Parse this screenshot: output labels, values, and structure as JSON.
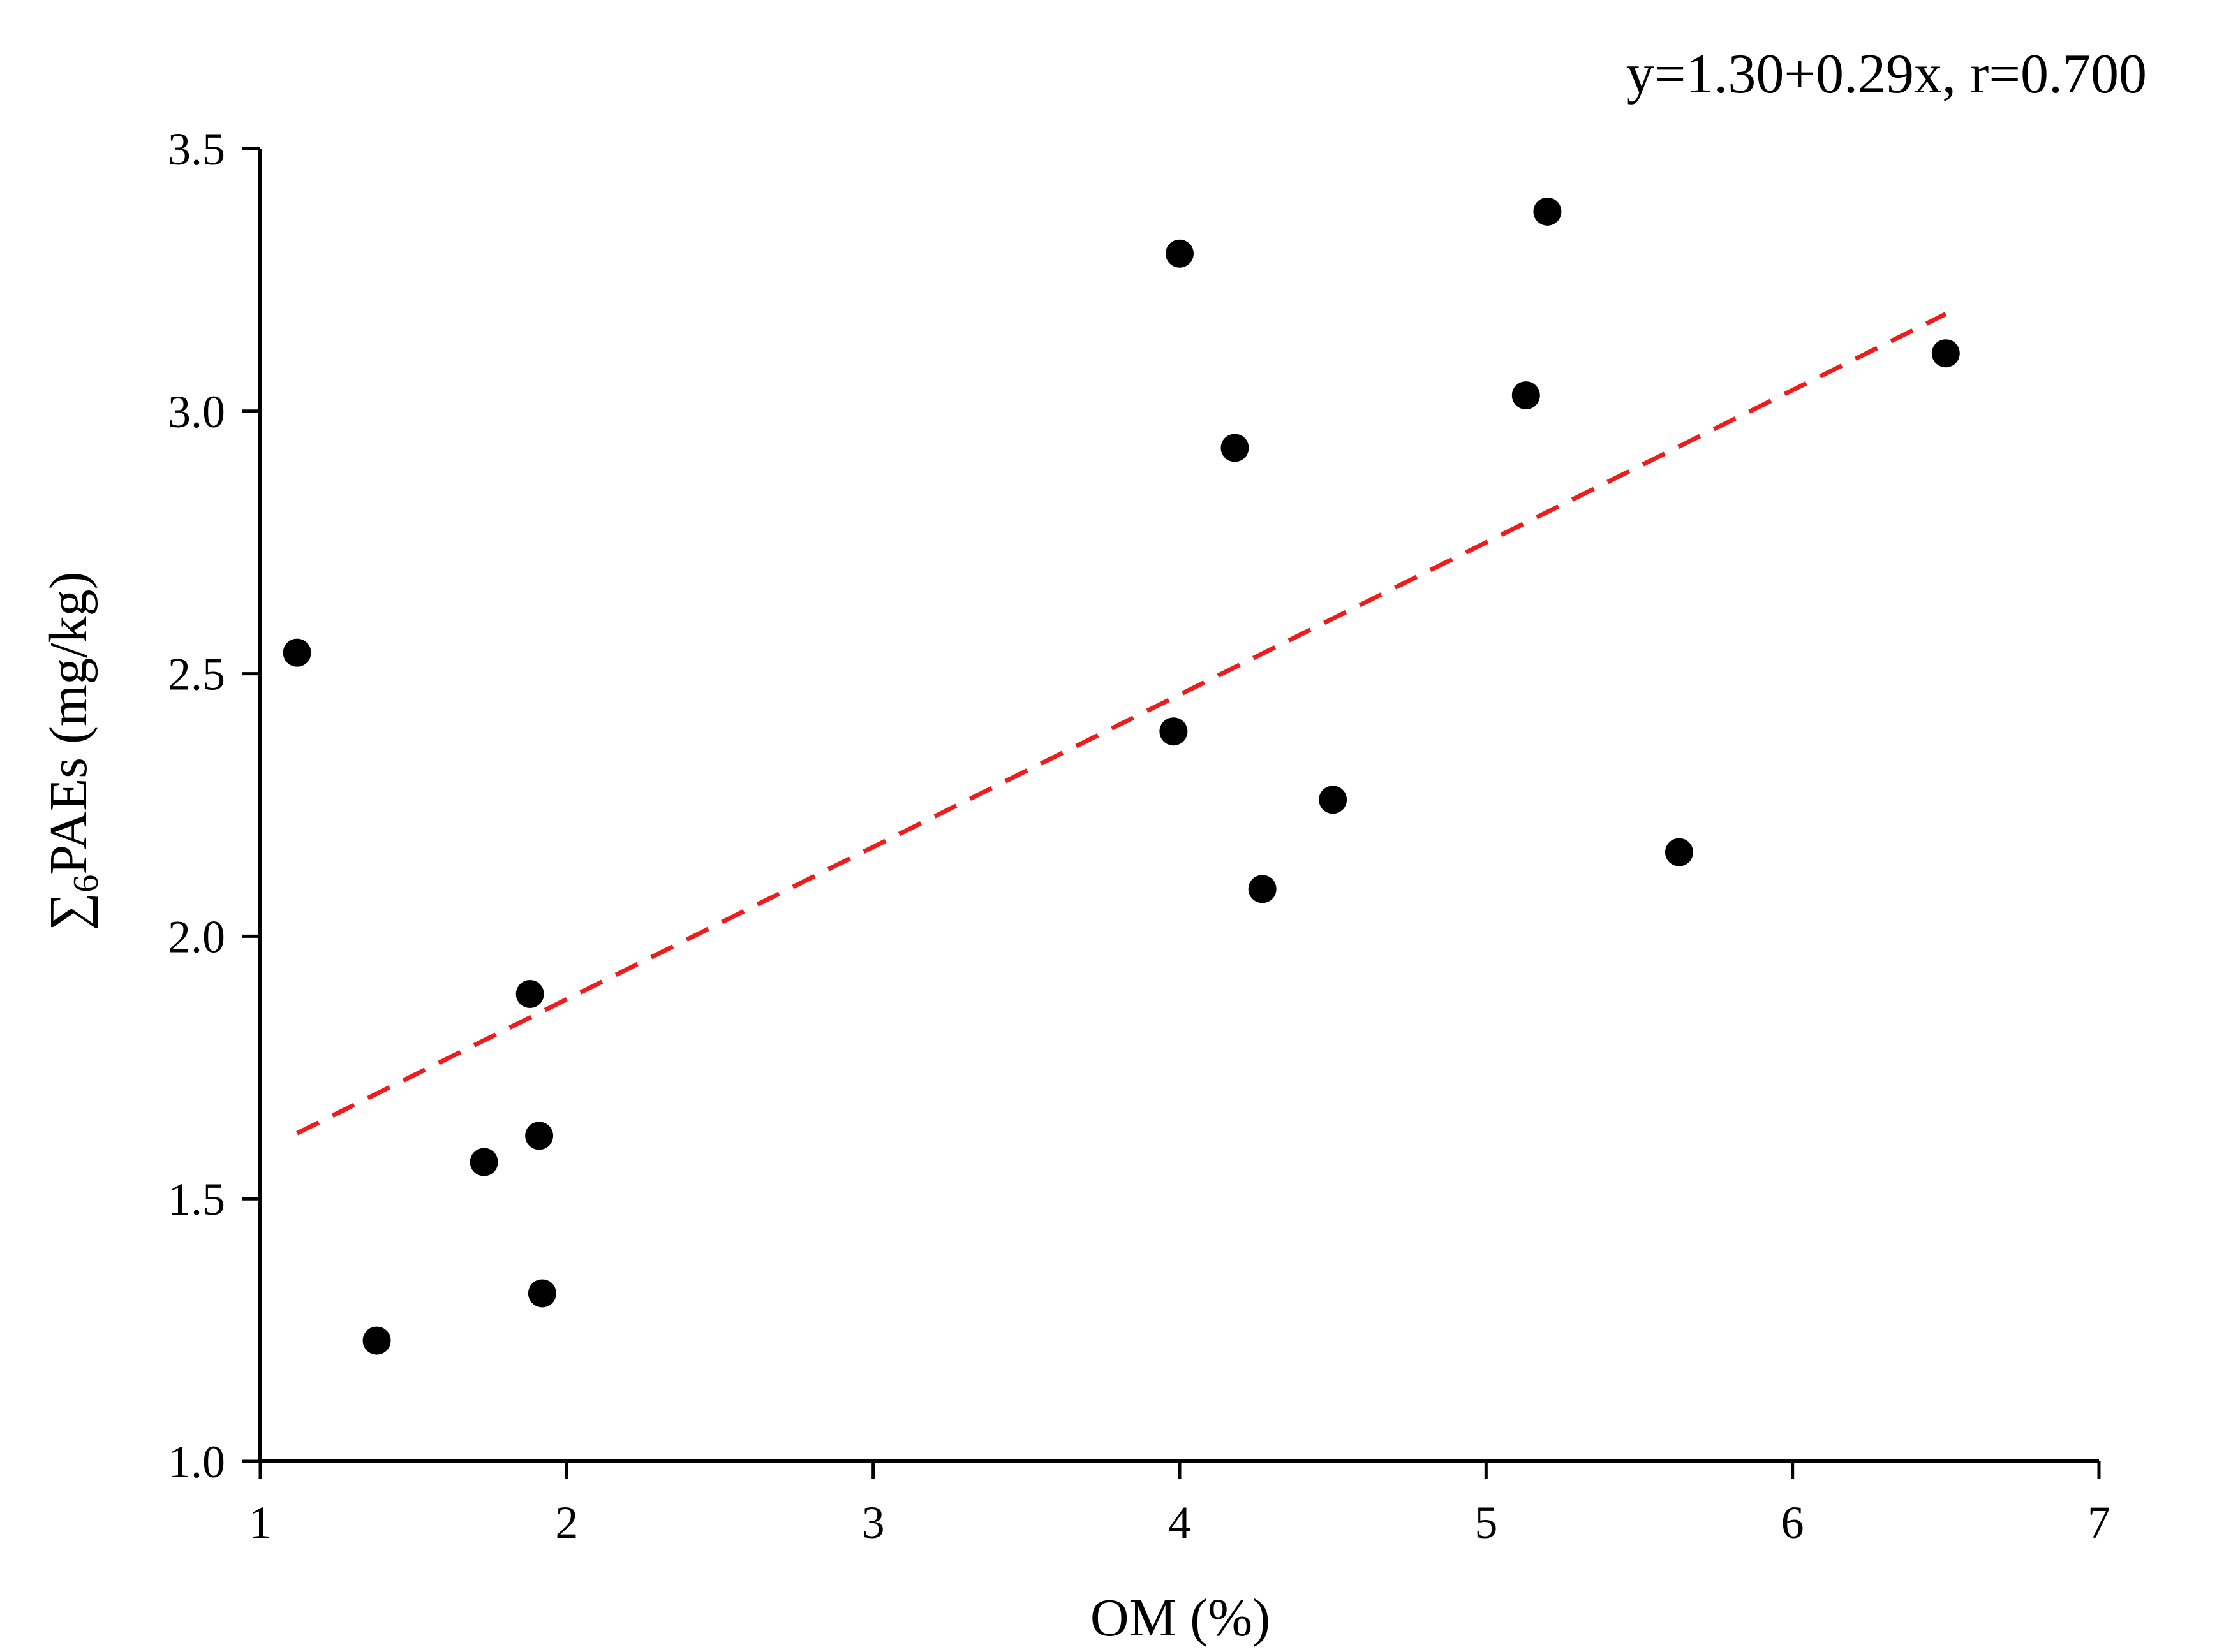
{
  "chart_data": {
    "type": "scatter",
    "equation_label": "y=1.30+0.29x, r=0.700",
    "xlabel": "OM (%)",
    "ylabel": {
      "prefix": "∑",
      "subscript": "6",
      "main": "PAEs (mg/kg)"
    },
    "xlim": [
      1,
      7
    ],
    "ylim": [
      1.0,
      3.5
    ],
    "xticks": [
      1,
      2,
      3,
      4,
      5,
      6,
      7
    ],
    "yticks": [
      1.0,
      1.5,
      2.0,
      2.5,
      3.0,
      3.5
    ],
    "ytick_labels": [
      "1.0",
      "1.5",
      "2.0",
      "2.5",
      "3.0",
      "3.5"
    ],
    "points": [
      {
        "x": 1.12,
        "y": 2.54
      },
      {
        "x": 1.38,
        "y": 1.23
      },
      {
        "x": 1.73,
        "y": 1.57
      },
      {
        "x": 1.88,
        "y": 1.89
      },
      {
        "x": 1.91,
        "y": 1.62
      },
      {
        "x": 1.92,
        "y": 1.32
      },
      {
        "x": 3.98,
        "y": 2.39
      },
      {
        "x": 4.0,
        "y": 3.3
      },
      {
        "x": 4.18,
        "y": 2.93
      },
      {
        "x": 4.27,
        "y": 2.09
      },
      {
        "x": 4.5,
        "y": 2.26
      },
      {
        "x": 5.13,
        "y": 3.03
      },
      {
        "x": 5.2,
        "y": 3.38
      },
      {
        "x": 5.63,
        "y": 2.16
      },
      {
        "x": 6.5,
        "y": 3.11
      }
    ],
    "fit_line": {
      "intercept": 1.3,
      "slope": 0.29,
      "x_range": [
        1.12,
        6.5
      ],
      "color": "#ee1c1c",
      "style": "dashed"
    },
    "point_color": "#000000",
    "grid": false
  }
}
